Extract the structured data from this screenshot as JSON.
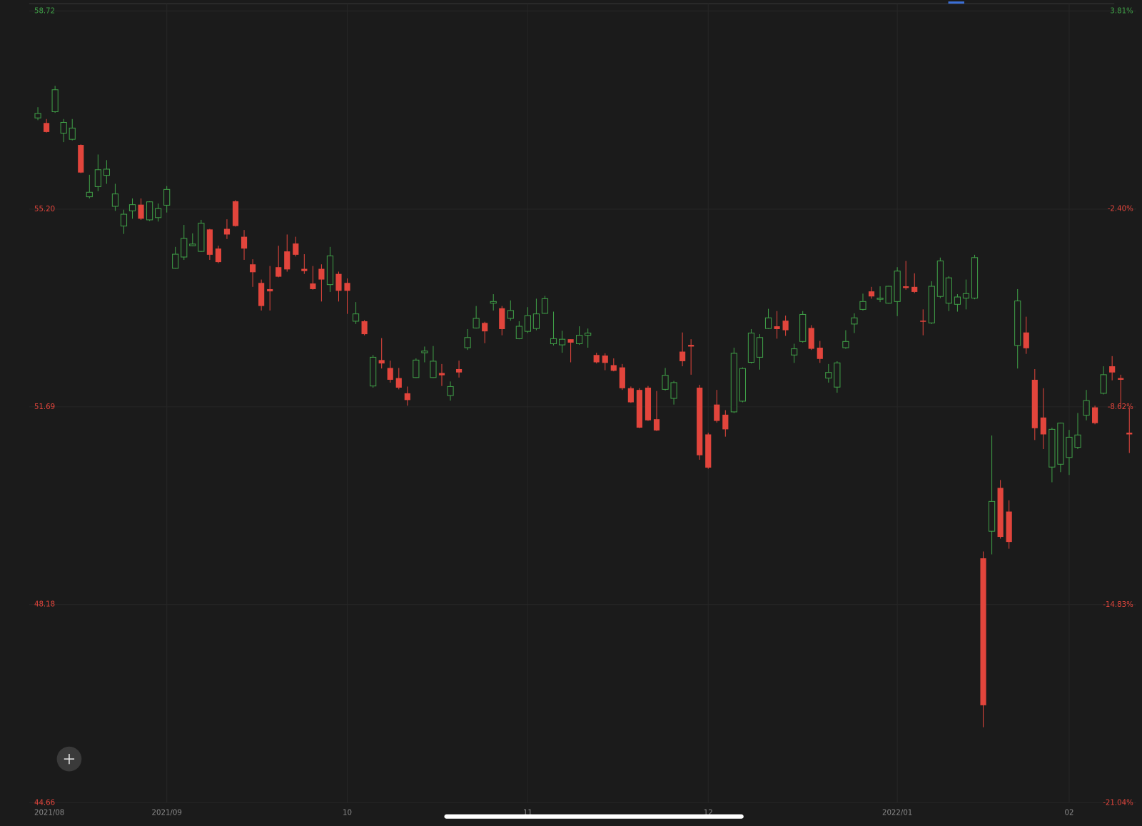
{
  "chart_data": {
    "type": "candlestick",
    "up_color": "#3f9f47",
    "down_color": "#e2453c",
    "categories": [
      "2021/08",
      null,
      null,
      null,
      null,
      null,
      null,
      null,
      null,
      null,
      null,
      null,
      null,
      null,
      null,
      "2021/09",
      null,
      null,
      null,
      null,
      null,
      null,
      null,
      null,
      null,
      null,
      null,
      null,
      null,
      null,
      null,
      null,
      null,
      null,
      null,
      null,
      "10",
      null,
      null,
      null,
      null,
      null,
      null,
      null,
      null,
      null,
      null,
      null,
      null,
      null,
      null,
      null,
      null,
      null,
      null,
      null,
      null,
      "11",
      null,
      null,
      null,
      null,
      null,
      null,
      null,
      null,
      null,
      null,
      null,
      null,
      null,
      null,
      null,
      null,
      null,
      null,
      null,
      null,
      "12",
      null,
      null,
      null,
      null,
      null,
      null,
      null,
      null,
      null,
      null,
      null,
      null,
      null,
      null,
      null,
      null,
      null,
      null,
      null,
      null,
      null,
      "2022/01",
      null,
      null,
      null,
      null,
      null,
      null,
      null,
      null,
      null,
      null,
      null,
      null,
      null,
      null,
      null,
      null,
      null,
      null,
      null,
      "02",
      null,
      null,
      null,
      null,
      null,
      null,
      null
    ],
    "open": [
      56.82,
      56.73,
      56.93,
      56.55,
      56.44,
      56.34,
      55.42,
      55.6,
      55.8,
      55.25,
      54.9,
      55.17,
      55.28,
      55.01,
      55.05,
      55.27,
      54.15,
      54.35,
      54.55,
      54.45,
      54.84,
      54.5,
      54.85,
      55.34,
      54.71,
      54.22,
      53.89,
      53.78,
      54.17,
      54.45,
      54.59,
      54.14,
      53.88,
      54.14,
      53.86,
      54.05,
      53.89,
      53.21,
      53.21,
      52.06,
      52.52,
      52.38,
      52.2,
      51.93,
      52.21,
      52.65,
      52.21,
      52.29,
      51.89,
      52.36,
      52.74,
      53.09,
      53.18,
      53.53,
      53.44,
      53.26,
      52.9,
      53.03,
      53.08,
      53.35,
      52.81,
      52.79,
      52.89,
      52.81,
      52.96,
      52.61,
      52.6,
      52.43,
      52.39,
      52.02,
      51.99,
      52.03,
      51.47,
      52.0,
      51.84,
      52.67,
      52.79,
      52.03,
      51.2,
      51.73,
      51.55,
      51.6,
      51.79,
      52.48,
      52.57,
      53.08,
      53.12,
      53.22,
      52.61,
      52.85,
      53.09,
      52.74,
      52.2,
      52.04,
      52.74,
      53.16,
      53.42,
      53.74,
      53.6,
      53.53,
      53.56,
      53.83,
      53.82,
      53.22,
      53.18,
      53.65,
      53.53,
      53.51,
      53.62,
      53.62,
      49.0,
      49.48,
      50.25,
      49.83,
      52.78,
      53.01,
      52.17,
      51.5,
      50.62,
      50.67,
      50.79,
      50.97,
      51.54,
      51.68,
      51.93,
      52.41,
      52.2,
      51.23
    ],
    "high": [
      57.01,
      56.8,
      57.39,
      56.8,
      56.8,
      56.35,
      55.81,
      56.17,
      56.07,
      55.65,
      55.19,
      55.39,
      55.39,
      55.34,
      55.3,
      55.61,
      54.53,
      54.92,
      54.77,
      55.01,
      54.85,
      54.55,
      55.02,
      55.36,
      54.83,
      54.31,
      53.95,
      54.19,
      54.55,
      54.75,
      54.71,
      54.4,
      54.19,
      54.22,
      54.53,
      54.09,
      53.97,
      53.55,
      53.23,
      52.61,
      52.91,
      52.51,
      52.38,
      52.05,
      52.55,
      52.76,
      52.77,
      52.45,
      52.14,
      52.51,
      53.07,
      53.48,
      53.2,
      53.69,
      53.48,
      53.58,
      53.21,
      53.46,
      53.61,
      53.66,
      53.38,
      53.04,
      52.89,
      53.12,
      53.08,
      52.65,
      52.64,
      52.55,
      52.45,
      52.05,
      52.02,
      52.06,
      51.97,
      52.38,
      52.15,
      53.01,
      52.89,
      52.08,
      51.23,
      51.99,
      51.63,
      52.74,
      52.39,
      53.07,
      52.98,
      53.43,
      53.39,
      53.31,
      52.81,
      53.39,
      53.14,
      52.86,
      52.45,
      52.5,
      53.05,
      53.35,
      53.7,
      53.82,
      53.83,
      53.84,
      54.17,
      54.28,
      54.06,
      53.42,
      53.92,
      54.34,
      54.01,
      53.69,
      53.95,
      54.39,
      49.12,
      51.18,
      50.39,
      50.03,
      53.78,
      53.29,
      52.36,
      52.02,
      51.32,
      51.41,
      51.28,
      51.58,
      51.99,
      51.71,
      52.41,
      52.59,
      52.26,
      51.67
    ],
    "low": [
      56.78,
      56.56,
      56.91,
      56.39,
      56.42,
      55.84,
      55.39,
      55.52,
      55.65,
      55.17,
      54.76,
      55.03,
      55.01,
      54.99,
      54.98,
      55.14,
      54.14,
      54.3,
      54.54,
      54.44,
      54.3,
      54.24,
      54.67,
      54.89,
      54.3,
      53.82,
      53.4,
      53.4,
      53.99,
      54.09,
      54.36,
      54.05,
      53.77,
      53.56,
      53.73,
      53.56,
      53.34,
      53.16,
      52.96,
      52.03,
      52.37,
      52.12,
      52.0,
      51.71,
      52.2,
      52.48,
      52.2,
      52.06,
      51.8,
      52.21,
      52.7,
      53.08,
      52.82,
      53.4,
      52.96,
      53.22,
      52.89,
      53.0,
      53.05,
      53.34,
      52.78,
      52.65,
      52.48,
      52.79,
      52.74,
      52.46,
      52.34,
      52.32,
      51.99,
      51.76,
      51.31,
      51.44,
      51.26,
      51.98,
      51.73,
      52.41,
      52.26,
      50.75,
      50.59,
      51.41,
      51.16,
      51.58,
      51.77,
      52.46,
      52.35,
      53.07,
      52.9,
      52.95,
      52.47,
      52.83,
      52.7,
      52.47,
      52.12,
      51.94,
      52.72,
      53.0,
      53.4,
      53.61,
      53.55,
      53.52,
      53.3,
      53.77,
      53.71,
      52.96,
      53.16,
      53.62,
      53.39,
      53.38,
      53.42,
      53.6,
      46.0,
      49.07,
      49.35,
      49.17,
      52.37,
      52.63,
      51.1,
      50.94,
      50.35,
      50.53,
      50.48,
      50.94,
      51.45,
      51.38,
      51.91,
      52.16,
      51.67,
      50.87
    ],
    "close": [
      56.9,
      56.57,
      57.32,
      56.74,
      56.64,
      55.85,
      55.5,
      55.9,
      55.91,
      55.47,
      55.11,
      55.28,
      55.03,
      55.33,
      55.21,
      55.55,
      54.4,
      54.68,
      54.58,
      54.95,
      54.39,
      54.26,
      54.75,
      54.9,
      54.5,
      54.08,
      53.48,
      53.74,
      54.0,
      54.13,
      54.39,
      54.1,
      53.78,
      53.95,
      54.37,
      53.75,
      53.75,
      53.34,
      52.98,
      52.57,
      52.46,
      52.17,
      52.03,
      51.81,
      52.52,
      52.68,
      52.5,
      52.25,
      52.05,
      52.3,
      52.92,
      53.26,
      53.03,
      53.56,
      53.07,
      53.4,
      53.12,
      53.31,
      53.34,
      53.61,
      52.9,
      52.89,
      52.83,
      52.96,
      53.0,
      52.48,
      52.47,
      52.33,
      52.02,
      51.77,
      51.32,
      51.45,
      51.27,
      52.25,
      52.12,
      52.5,
      52.76,
      50.83,
      50.61,
      51.44,
      51.29,
      52.64,
      52.37,
      53.0,
      52.92,
      53.27,
      53.07,
      53.05,
      52.72,
      53.33,
      52.72,
      52.54,
      52.3,
      52.47,
      52.85,
      53.27,
      53.56,
      53.65,
      53.62,
      53.83,
      54.1,
      53.8,
      53.73,
      53.2,
      53.83,
      54.28,
      53.98,
      53.64,
      53.7,
      54.34,
      46.39,
      50.01,
      49.38,
      49.29,
      53.57,
      52.73,
      51.31,
      51.2,
      51.29,
      51.4,
      51.15,
      51.19,
      51.8,
      51.4,
      52.26,
      52.3,
      52.17,
      51.2
    ],
    "ylim": [
      44.66,
      58.72
    ],
    "yticks": [
      58.72,
      {
        "value": 55.2,
        "label": "55.20"
      },
      51.69,
      48.18,
      44.66
    ],
    "y2lim": [
      -21.04,
      3.81
    ],
    "y2ticks": [
      {
        "value": 3.81,
        "label": "3.81%"
      },
      {
        "value": -2.4,
        "label": "-2.40%"
      },
      {
        "value": -8.62,
        "label": "-8.62%"
      },
      {
        "value": -14.83,
        "label": "-14.83%"
      },
      {
        "value": -21.04,
        "label": "-21.04%"
      }
    ],
    "grid": true
  }
}
